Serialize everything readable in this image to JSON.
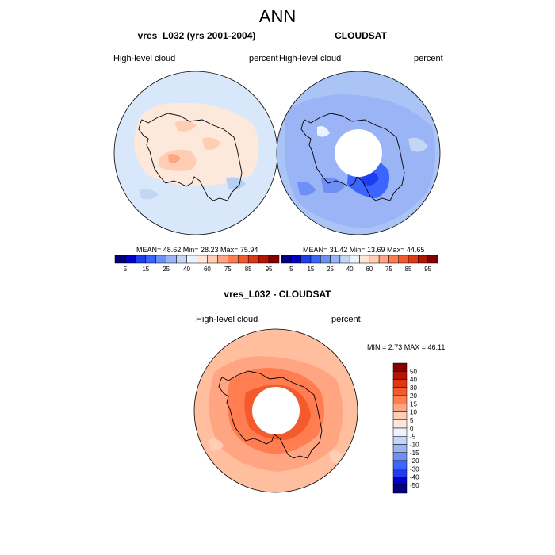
{
  "main_title": "ANN",
  "panels": {
    "model": {
      "title": "vres_L032 (yrs 2001-2004)",
      "left_label": "High-level cloud",
      "right_label": "percent",
      "stats": "MEAN=  48.62  Min=  28.23  Max=  75.94"
    },
    "obs": {
      "title": "CLOUDSAT",
      "left_label": "High-level cloud",
      "right_label": "percent",
      "stats": "MEAN=  31.42  Min=  13.69  Max=  44.65"
    },
    "diff": {
      "title": "vres_L032 - CLOUDSAT",
      "left_label": "High-level cloud",
      "right_label": "percent",
      "stats": "MIN =   2.73 MAX =  46.11"
    }
  },
  "colorbar_abs": {
    "colors": [
      "#00007f",
      "#0000c8",
      "#1e3cf0",
      "#3c64ff",
      "#6e8ff5",
      "#9bb4f5",
      "#c3d7f5",
      "#ebf3ff",
      "#ffe6d7",
      "#ffcdb4",
      "#ffa582",
      "#ff7d50",
      "#f55a2d",
      "#e13714",
      "#b41400",
      "#820000"
    ],
    "labels": [
      "5",
      "15",
      "25",
      "40",
      "60",
      "75",
      "85",
      "95"
    ]
  },
  "colorbar_diff": {
    "colors": [
      "#820000",
      "#b41400",
      "#e13714",
      "#f55a2d",
      "#ff7d50",
      "#ffa582",
      "#ffcdb4",
      "#ffe6d7",
      "#ebf3ff",
      "#c3d7f5",
      "#9bb4f5",
      "#6e8ff5",
      "#3c64ff",
      "#1e3cf0",
      "#0000c8",
      "#00007f"
    ],
    "labels": [
      "50",
      "40",
      "30",
      "20",
      "15",
      "10",
      "5",
      "0",
      "-5",
      "-10",
      "-15",
      "-20",
      "-30",
      "-40",
      "-50"
    ]
  }
}
